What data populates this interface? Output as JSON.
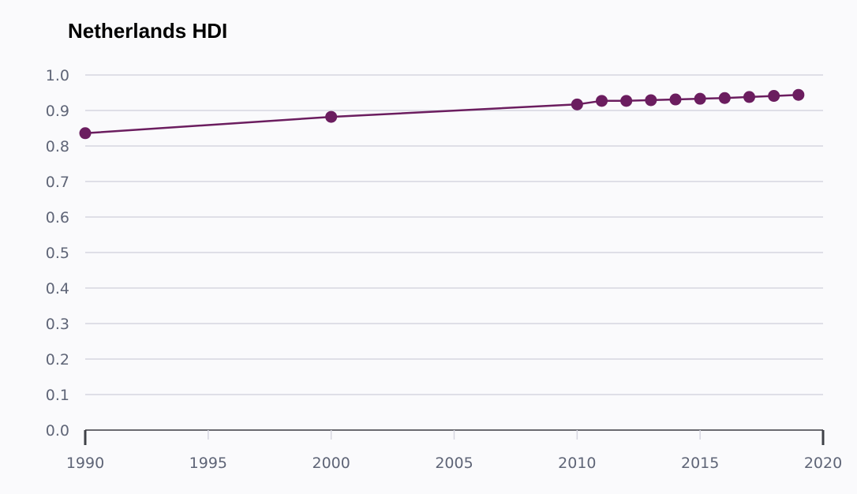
{
  "chart_data": {
    "type": "line",
    "title": "Netherlands HDI",
    "xlabel": "",
    "ylabel": "",
    "x_ticks": [
      "1990",
      "1995",
      "2000",
      "2005",
      "2010",
      "2015",
      "2020"
    ],
    "y_ticks": [
      "0.0",
      "0.1",
      "0.2",
      "0.3",
      "0.4",
      "0.5",
      "0.6",
      "0.7",
      "0.8",
      "0.9",
      "1.0"
    ],
    "xlim": [
      1990,
      2020
    ],
    "ylim": [
      0,
      1
    ],
    "grid": true,
    "series": [
      {
        "x": [
          1990,
          2000,
          2010,
          2011,
          2012,
          2013,
          2014,
          2015,
          2016,
          2017,
          2018,
          2019
        ],
        "values": [
          0.836,
          0.882,
          0.917,
          0.927,
          0.927,
          0.929,
          0.931,
          0.933,
          0.935,
          0.938,
          0.941,
          0.944
        ]
      }
    ],
    "colors": {
      "series": "#6b1d5f",
      "grid": "#d6d6e0",
      "axis": "#6a6a70",
      "plot_bg": "#fafafc"
    }
  }
}
